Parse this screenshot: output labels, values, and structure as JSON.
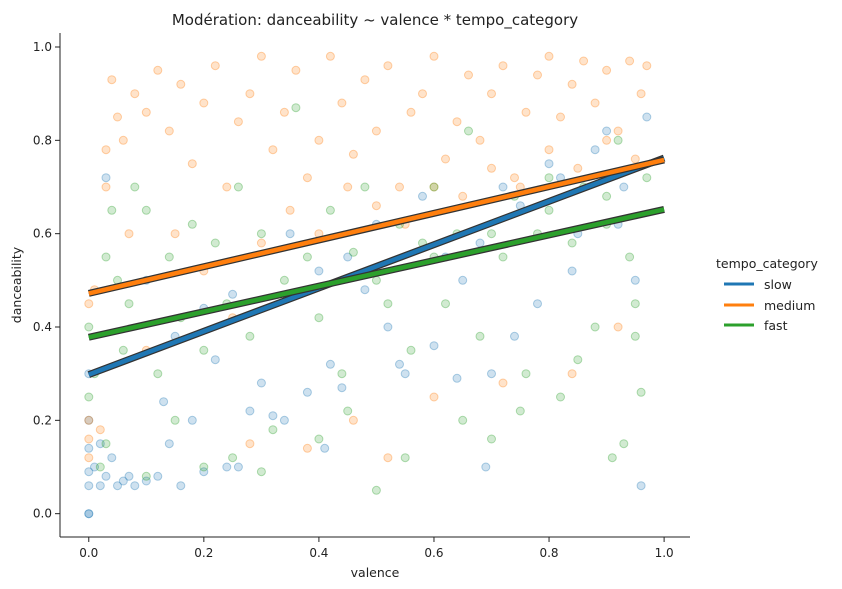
{
  "chart_data": {
    "type": "scatter",
    "title": "Modération: danceability ~ valence * tempo_category",
    "xlabel": "valence",
    "ylabel": "danceability",
    "xlim": [
      -0.05,
      1.045
    ],
    "ylim": [
      -0.05,
      1.03
    ],
    "xticks": [
      0.0,
      0.2,
      0.4,
      0.6,
      0.8,
      1.0
    ],
    "yticks": [
      0.0,
      0.2,
      0.4,
      0.6,
      0.8,
      1.0
    ],
    "xtick_labels": [
      "0.0",
      "0.2",
      "0.4",
      "0.6",
      "0.8",
      "1.0"
    ],
    "ytick_labels": [
      "0.0",
      "0.2",
      "0.4",
      "0.6",
      "0.8",
      "1.0"
    ],
    "grid": false,
    "legend": {
      "title": "tempo_category",
      "placement": "right-outside"
    },
    "series": [
      {
        "name": "slow",
        "color": "#1f77b4",
        "regression": {
          "x": [
            0.0,
            1.0
          ],
          "y": [
            0.298,
            0.762
          ]
        },
        "points": [
          [
            0.0,
            0.0
          ],
          [
            0.0,
            0.0
          ],
          [
            0.0,
            0.06
          ],
          [
            0.0,
            0.09
          ],
          [
            0.0,
            0.14
          ],
          [
            0.0,
            0.2
          ],
          [
            0.0,
            0.3
          ],
          [
            0.01,
            0.1
          ],
          [
            0.02,
            0.06
          ],
          [
            0.02,
            0.15
          ],
          [
            0.03,
            0.08
          ],
          [
            0.03,
            0.72
          ],
          [
            0.04,
            0.12
          ],
          [
            0.05,
            0.06
          ],
          [
            0.06,
            0.07
          ],
          [
            0.07,
            0.08
          ],
          [
            0.08,
            0.06
          ],
          [
            0.1,
            0.07
          ],
          [
            0.12,
            0.08
          ],
          [
            0.14,
            0.15
          ],
          [
            0.16,
            0.06
          ],
          [
            0.18,
            0.2
          ],
          [
            0.2,
            0.09
          ],
          [
            0.22,
            0.33
          ],
          [
            0.24,
            0.1
          ],
          [
            0.25,
            0.47
          ],
          [
            0.28,
            0.22
          ],
          [
            0.3,
            0.28
          ],
          [
            0.32,
            0.21
          ],
          [
            0.35,
            0.6
          ],
          [
            0.38,
            0.26
          ],
          [
            0.4,
            0.52
          ],
          [
            0.42,
            0.32
          ],
          [
            0.45,
            0.55
          ],
          [
            0.48,
            0.48
          ],
          [
            0.5,
            0.62
          ],
          [
            0.52,
            0.4
          ],
          [
            0.55,
            0.3
          ],
          [
            0.58,
            0.68
          ],
          [
            0.6,
            0.36
          ],
          [
            0.62,
            0.55
          ],
          [
            0.65,
            0.5
          ],
          [
            0.68,
            0.58
          ],
          [
            0.7,
            0.3
          ],
          [
            0.72,
            0.7
          ],
          [
            0.75,
            0.66
          ],
          [
            0.78,
            0.45
          ],
          [
            0.8,
            0.75
          ],
          [
            0.82,
            0.72
          ],
          [
            0.85,
            0.6
          ],
          [
            0.88,
            0.78
          ],
          [
            0.9,
            0.82
          ],
          [
            0.93,
            0.7
          ],
          [
            0.95,
            0.5
          ],
          [
            0.96,
            0.06
          ],
          [
            0.97,
            0.85
          ],
          [
            0.1,
            0.5
          ],
          [
            0.15,
            0.38
          ],
          [
            0.2,
            0.44
          ],
          [
            0.26,
            0.1
          ],
          [
            0.34,
            0.2
          ],
          [
            0.44,
            0.27
          ],
          [
            0.54,
            0.32
          ],
          [
            0.64,
            0.29
          ],
          [
            0.74,
            0.38
          ],
          [
            0.84,
            0.52
          ],
          [
            0.92,
            0.62
          ],
          [
            0.69,
            0.1
          ],
          [
            0.41,
            0.14
          ],
          [
            0.13,
            0.24
          ]
        ]
      },
      {
        "name": "medium",
        "color": "#ff7f0e",
        "regression": {
          "x": [
            0.0,
            1.0
          ],
          "y": [
            0.472,
            0.758
          ]
        },
        "points": [
          [
            0.0,
            0.12
          ],
          [
            0.0,
            0.16
          ],
          [
            0.0,
            0.2
          ],
          [
            0.0,
            0.45
          ],
          [
            0.01,
            0.48
          ],
          [
            0.02,
            0.18
          ],
          [
            0.03,
            0.7
          ],
          [
            0.03,
            0.78
          ],
          [
            0.04,
            0.93
          ],
          [
            0.05,
            0.85
          ],
          [
            0.06,
            0.8
          ],
          [
            0.07,
            0.6
          ],
          [
            0.08,
            0.9
          ],
          [
            0.1,
            0.86
          ],
          [
            0.12,
            0.95
          ],
          [
            0.14,
            0.82
          ],
          [
            0.16,
            0.92
          ],
          [
            0.18,
            0.75
          ],
          [
            0.2,
            0.88
          ],
          [
            0.22,
            0.96
          ],
          [
            0.24,
            0.7
          ],
          [
            0.26,
            0.84
          ],
          [
            0.28,
            0.9
          ],
          [
            0.3,
            0.98
          ],
          [
            0.32,
            0.78
          ],
          [
            0.34,
            0.86
          ],
          [
            0.36,
            0.95
          ],
          [
            0.38,
            0.72
          ],
          [
            0.4,
            0.8
          ],
          [
            0.42,
            0.98
          ],
          [
            0.44,
            0.88
          ],
          [
            0.46,
            0.77
          ],
          [
            0.48,
            0.93
          ],
          [
            0.5,
            0.82
          ],
          [
            0.52,
            0.96
          ],
          [
            0.54,
            0.7
          ],
          [
            0.56,
            0.86
          ],
          [
            0.58,
            0.9
          ],
          [
            0.6,
            0.98
          ],
          [
            0.62,
            0.76
          ],
          [
            0.64,
            0.84
          ],
          [
            0.66,
            0.94
          ],
          [
            0.68,
            0.8
          ],
          [
            0.7,
            0.9
          ],
          [
            0.72,
            0.96
          ],
          [
            0.74,
            0.72
          ],
          [
            0.76,
            0.86
          ],
          [
            0.78,
            0.94
          ],
          [
            0.8,
            0.98
          ],
          [
            0.82,
            0.85
          ],
          [
            0.84,
            0.92
          ],
          [
            0.86,
            0.97
          ],
          [
            0.88,
            0.88
          ],
          [
            0.9,
            0.95
          ],
          [
            0.92,
            0.82
          ],
          [
            0.94,
            0.97
          ],
          [
            0.96,
            0.9
          ],
          [
            0.97,
            0.96
          ],
          [
            0.1,
            0.35
          ],
          [
            0.15,
            0.6
          ],
          [
            0.2,
            0.52
          ],
          [
            0.25,
            0.42
          ],
          [
            0.3,
            0.58
          ],
          [
            0.35,
            0.65
          ],
          [
            0.4,
            0.6
          ],
          [
            0.45,
            0.7
          ],
          [
            0.5,
            0.66
          ],
          [
            0.55,
            0.62
          ],
          [
            0.6,
            0.7
          ],
          [
            0.65,
            0.68
          ],
          [
            0.7,
            0.74
          ],
          [
            0.75,
            0.7
          ],
          [
            0.8,
            0.78
          ],
          [
            0.85,
            0.74
          ],
          [
            0.9,
            0.8
          ],
          [
            0.95,
            0.76
          ],
          [
            0.52,
            0.12
          ],
          [
            0.46,
            0.2
          ],
          [
            0.28,
            0.15
          ],
          [
            0.38,
            0.14
          ],
          [
            0.6,
            0.25
          ],
          [
            0.72,
            0.28
          ],
          [
            0.84,
            0.3
          ],
          [
            0.92,
            0.4
          ]
        ]
      },
      {
        "name": "fast",
        "color": "#2ca02c",
        "regression": {
          "x": [
            0.0,
            1.0
          ],
          "y": [
            0.378,
            0.652
          ]
        },
        "points": [
          [
            0.0,
            0.25
          ],
          [
            0.0,
            0.4
          ],
          [
            0.01,
            0.3
          ],
          [
            0.02,
            0.1
          ],
          [
            0.03,
            0.15
          ],
          [
            0.03,
            0.55
          ],
          [
            0.04,
            0.65
          ],
          [
            0.05,
            0.5
          ],
          [
            0.06,
            0.35
          ],
          [
            0.07,
            0.45
          ],
          [
            0.08,
            0.7
          ],
          [
            0.1,
            0.65
          ],
          [
            0.12,
            0.3
          ],
          [
            0.14,
            0.55
          ],
          [
            0.16,
            0.42
          ],
          [
            0.18,
            0.62
          ],
          [
            0.2,
            0.35
          ],
          [
            0.22,
            0.58
          ],
          [
            0.24,
            0.45
          ],
          [
            0.26,
            0.7
          ],
          [
            0.28,
            0.38
          ],
          [
            0.3,
            0.6
          ],
          [
            0.32,
            0.18
          ],
          [
            0.34,
            0.5
          ],
          [
            0.36,
            0.87
          ],
          [
            0.38,
            0.55
          ],
          [
            0.4,
            0.42
          ],
          [
            0.42,
            0.65
          ],
          [
            0.44,
            0.3
          ],
          [
            0.46,
            0.56
          ],
          [
            0.48,
            0.7
          ],
          [
            0.5,
            0.05
          ],
          [
            0.52,
            0.45
          ],
          [
            0.54,
            0.62
          ],
          [
            0.56,
            0.35
          ],
          [
            0.58,
            0.58
          ],
          [
            0.6,
            0.7
          ],
          [
            0.62,
            0.45
          ],
          [
            0.64,
            0.6
          ],
          [
            0.66,
            0.82
          ],
          [
            0.68,
            0.38
          ],
          [
            0.7,
            0.16
          ],
          [
            0.72,
            0.55
          ],
          [
            0.74,
            0.68
          ],
          [
            0.76,
            0.3
          ],
          [
            0.78,
            0.6
          ],
          [
            0.8,
            0.72
          ],
          [
            0.82,
            0.25
          ],
          [
            0.84,
            0.58
          ],
          [
            0.86,
            0.7
          ],
          [
            0.88,
            0.4
          ],
          [
            0.9,
            0.62
          ],
          [
            0.91,
            0.12
          ],
          [
            0.92,
            0.8
          ],
          [
            0.93,
            0.15
          ],
          [
            0.94,
            0.55
          ],
          [
            0.95,
            0.38
          ],
          [
            0.96,
            0.26
          ],
          [
            0.97,
            0.72
          ],
          [
            0.1,
            0.08
          ],
          [
            0.15,
            0.2
          ],
          [
            0.2,
            0.1
          ],
          [
            0.25,
            0.12
          ],
          [
            0.3,
            0.09
          ],
          [
            0.4,
            0.16
          ],
          [
            0.45,
            0.22
          ],
          [
            0.55,
            0.12
          ],
          [
            0.65,
            0.2
          ],
          [
            0.75,
            0.22
          ],
          [
            0.85,
            0.33
          ],
          [
            0.95,
            0.45
          ],
          [
            0.5,
            0.5
          ],
          [
            0.6,
            0.55
          ],
          [
            0.7,
            0.6
          ],
          [
            0.8,
            0.65
          ],
          [
            0.9,
            0.68
          ]
        ]
      }
    ]
  }
}
